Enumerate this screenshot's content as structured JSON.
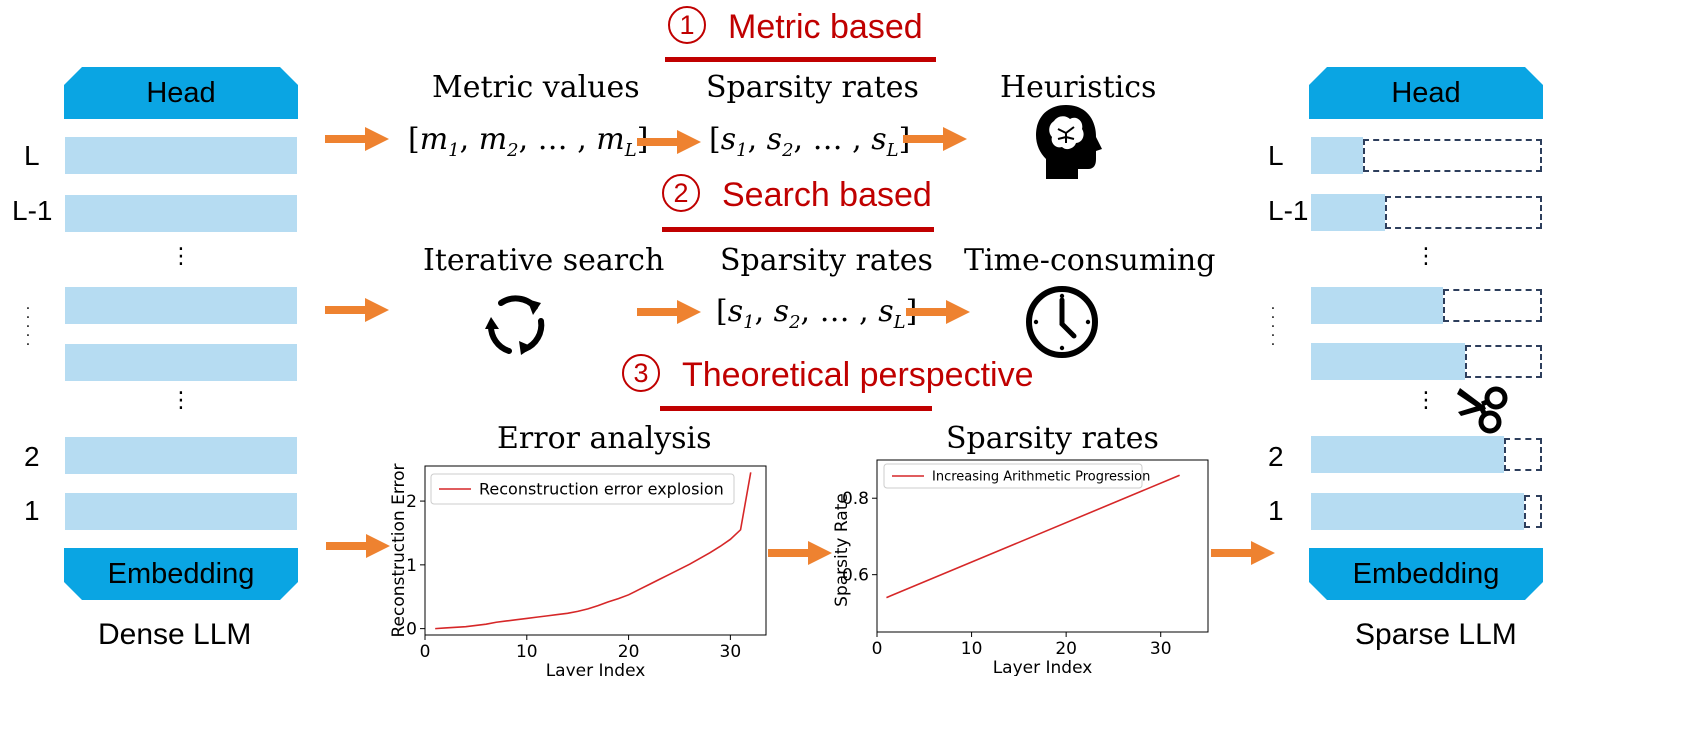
{
  "left_model": {
    "head": "Head",
    "embedding": "Embedding",
    "caption": "Dense LLM",
    "layer_labels": [
      "L",
      "L-1",
      "2",
      "1"
    ]
  },
  "right_model": {
    "head": "Head",
    "embedding": "Embedding",
    "caption": "Sparse LLM",
    "layer_labels": [
      "L",
      "L-1",
      "2",
      "1"
    ]
  },
  "sections": {
    "metric": {
      "num": "1",
      "title": "Metric based",
      "step1": "Metric values",
      "step2": "Sparsity rates",
      "step3": "Heuristics"
    },
    "search": {
      "num": "2",
      "title": "Search based",
      "step1": "Iterative search",
      "step2": "Sparsity rates",
      "step3": "Time-consuming"
    },
    "theory": {
      "num": "3",
      "title": "Theoretical perspective",
      "step1": "Error analysis",
      "step2": "Sparsity rates"
    }
  },
  "icons": {
    "heuristics": "brain-head-icon",
    "iterative": "refresh-cycle-icon",
    "time": "clock-icon",
    "prune": "scissors-icon"
  },
  "colors": {
    "accent_red": "#c00000",
    "head_blue": "#0aa5e3",
    "layer_blue": "#b6dcf2",
    "arrow_orange": "#ee8230",
    "line_red": "#d62728"
  },
  "chart_data": [
    {
      "type": "line",
      "title": "Error analysis",
      "xlabel": "Layer Index",
      "ylabel": "Reconstruction Error",
      "xlim": [
        0,
        33.5
      ],
      "ylim": [
        -0.1,
        2.55
      ],
      "xticks": [
        0,
        10,
        20,
        30
      ],
      "yticks": [
        0,
        1,
        2
      ],
      "legend": "top-left",
      "series": [
        {
          "name": "Reconstruction error explosion",
          "x": [
            1,
            2,
            3,
            4,
            5,
            6,
            7,
            8,
            9,
            10,
            11,
            12,
            13,
            14,
            15,
            16,
            17,
            18,
            19,
            20,
            21,
            22,
            23,
            24,
            25,
            26,
            27,
            28,
            29,
            30,
            31,
            32
          ],
          "values": [
            0.0,
            0.01,
            0.02,
            0.03,
            0.05,
            0.07,
            0.1,
            0.12,
            0.14,
            0.16,
            0.18,
            0.2,
            0.22,
            0.24,
            0.27,
            0.31,
            0.36,
            0.42,
            0.47,
            0.53,
            0.61,
            0.69,
            0.77,
            0.85,
            0.93,
            1.01,
            1.1,
            1.19,
            1.29,
            1.4,
            1.55,
            2.45
          ]
        }
      ]
    },
    {
      "type": "line",
      "title": "Sparsity rates",
      "xlabel": "Layer Index",
      "ylabel": "Sparsity Rate",
      "xlim": [
        0,
        35
      ],
      "ylim": [
        0.45,
        0.9
      ],
      "xticks": [
        0,
        10,
        20,
        30
      ],
      "yticks": [
        0.6,
        0.8
      ],
      "legend": "top-left",
      "series": [
        {
          "name": "Increasing Arithmetic Progression",
          "x": [
            1,
            32
          ],
          "values": [
            0.54,
            0.86
          ]
        }
      ]
    }
  ]
}
